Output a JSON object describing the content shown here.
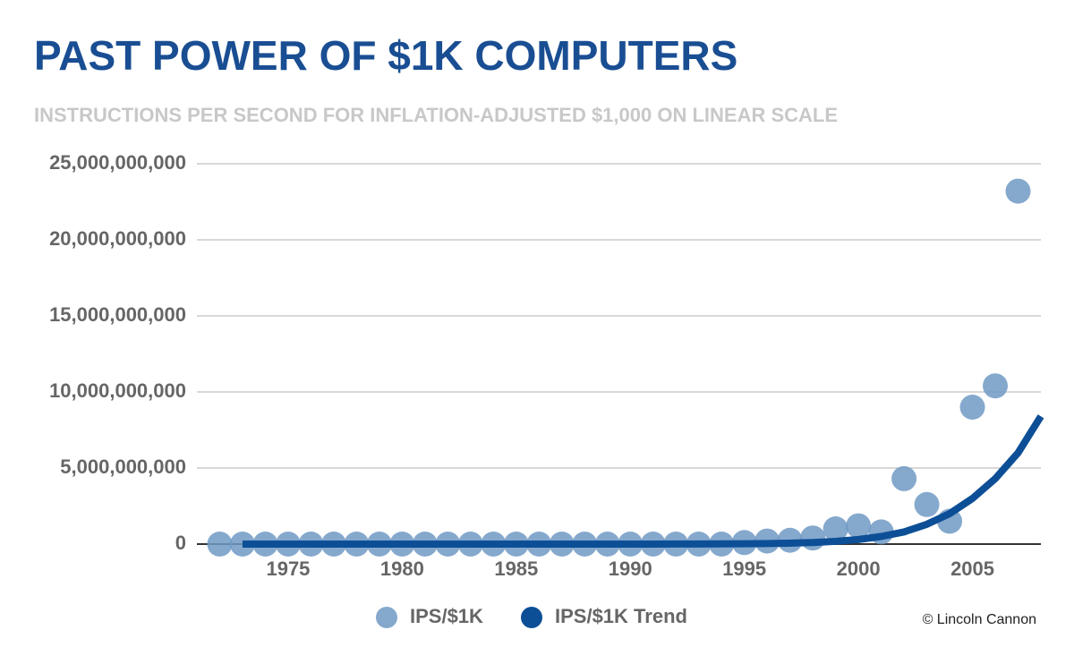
{
  "chart_data": {
    "type": "scatter",
    "title": "PAST POWER OF $1K COMPUTERS",
    "subtitle": "INSTRUCTIONS PER SECOND FOR INFLATION-ADJUSTED $1,000 ON LINEAR SCALE",
    "xlim": [
      1971,
      2008
    ],
    "xticks": [
      1975,
      1980,
      1985,
      1990,
      1995,
      2000,
      2005
    ],
    "ylim": [
      0,
      25000000000
    ],
    "yticks": [
      {
        "value": 0,
        "label": "0"
      },
      {
        "value": 5000000000,
        "label": "5,000,000,000"
      },
      {
        "value": 10000000000,
        "label": "10,000,000,000"
      },
      {
        "value": 15000000000,
        "label": "15,000,000,000"
      },
      {
        "value": 20000000000,
        "label": "20,000,000,000"
      },
      {
        "value": 25000000000,
        "label": "25,000,000,000"
      }
    ],
    "grid": true,
    "series": [
      {
        "name": "IPS/$1K",
        "type": "scatter",
        "color": "#7099c4",
        "x": [
          1972,
          1973,
          1974,
          1975,
          1976,
          1977,
          1978,
          1979,
          1980,
          1981,
          1982,
          1983,
          1984,
          1985,
          1986,
          1987,
          1988,
          1989,
          1990,
          1991,
          1992,
          1993,
          1994,
          1995,
          1996,
          1997,
          1998,
          1999,
          2000,
          2001,
          2002,
          2003,
          2004,
          2005,
          2006,
          2007
        ],
        "values": [
          0,
          0,
          0,
          0,
          0,
          0,
          0,
          0,
          0,
          0,
          0,
          0,
          0,
          0,
          0,
          0,
          0,
          0,
          0,
          0,
          0,
          0,
          0,
          100000000,
          200000000,
          250000000,
          400000000,
          1000000000,
          1200000000,
          800000000,
          4300000000,
          2600000000,
          1500000000,
          9000000000,
          10400000000,
          23200000000
        ]
      },
      {
        "name": "IPS/$1K Trend",
        "type": "line",
        "color": "#0d4f96",
        "x": [
          1973,
          1985,
          1990,
          1991,
          1992,
          1993,
          1994,
          1995,
          1996,
          1997,
          1998,
          1999,
          2000,
          2001,
          2002,
          2003,
          2004,
          2005,
          2006,
          2007,
          2008
        ],
        "values": [
          1000,
          100000,
          1400000,
          2400000,
          4000000,
          7000000,
          12000000,
          20000000,
          35000000,
          60000000,
          100000000,
          180000000,
          300000000,
          500000000,
          800000000,
          1300000000,
          2000000000,
          3000000000,
          4300000000,
          6000000000,
          8400000000
        ]
      }
    ]
  },
  "credit": "© Lincoln Cannon"
}
